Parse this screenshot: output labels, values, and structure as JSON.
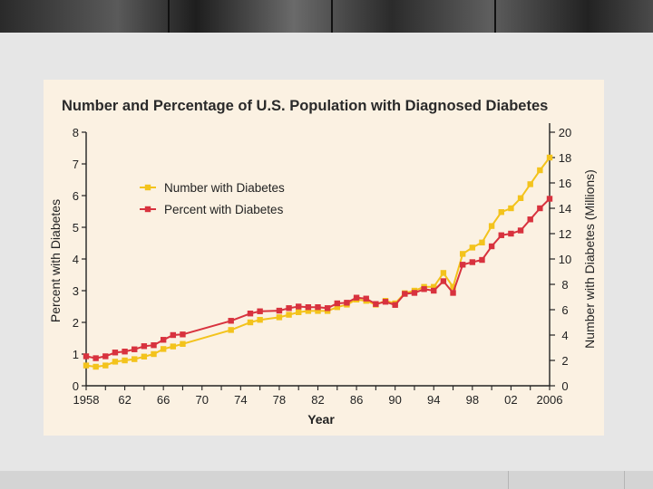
{
  "chart_data": {
    "type": "line",
    "title": "Number and Percentage of U.S. Population with Diagnosed Diabetes",
    "xlabel": "Year",
    "ylabel_left": "Percent with Diabetes",
    "ylabel_right": "Number with Diabetes (Millions)",
    "xlim": [
      1958,
      2006
    ],
    "ylim_left": [
      0,
      8
    ],
    "ylim_right": [
      0,
      20
    ],
    "x_tick_labels": [
      "1958",
      "62",
      "66",
      "70",
      "74",
      "78",
      "82",
      "86",
      "90",
      "94",
      "98",
      "02",
      "2006"
    ],
    "y_left_ticks": [
      "0",
      "1",
      "2",
      "3",
      "4",
      "5",
      "6",
      "7",
      "8"
    ],
    "y_right_ticks": [
      "0",
      "2",
      "4",
      "6",
      "8",
      "10",
      "12",
      "14",
      "16",
      "18",
      "20"
    ],
    "legend_position": "top-left",
    "series": [
      {
        "name": "Number with Diabetes",
        "axis": "right",
        "color": "#f3c31c",
        "x": [
          1958,
          1959,
          1960,
          1961,
          1962,
          1963,
          1964,
          1965,
          1966,
          1967,
          1968,
          1973,
          1975,
          1976,
          1978,
          1979,
          1980,
          1981,
          1982,
          1983,
          1984,
          1985,
          1986,
          1987,
          1988,
          1989,
          1990,
          1991,
          1992,
          1993,
          1994,
          1995,
          1996,
          1997,
          1998,
          1999,
          2000,
          2001,
          2002,
          2003,
          2004,
          2005,
          2006
        ],
        "values": [
          1.6,
          1.5,
          1.6,
          1.9,
          2.0,
          2.1,
          2.3,
          2.5,
          2.9,
          3.1,
          3.3,
          4.4,
          5.0,
          5.2,
          5.4,
          5.6,
          5.8,
          5.9,
          5.9,
          5.9,
          6.2,
          6.4,
          6.8,
          6.7,
          6.4,
          6.7,
          6.5,
          7.3,
          7.5,
          7.8,
          7.8,
          8.9,
          7.8,
          10.4,
          10.9,
          11.3,
          12.6,
          13.7,
          14.0,
          14.8,
          15.9,
          17.0,
          18.0
        ]
      },
      {
        "name": "Percent with Diabetes",
        "axis": "left",
        "color": "#d8323e",
        "x": [
          1958,
          1959,
          1960,
          1961,
          1962,
          1963,
          1964,
          1965,
          1966,
          1967,
          1968,
          1973,
          1975,
          1976,
          1978,
          1979,
          1980,
          1981,
          1982,
          1983,
          1984,
          1985,
          1986,
          1987,
          1988,
          1989,
          1990,
          1991,
          1992,
          1993,
          1994,
          1995,
          1996,
          1997,
          1998,
          1999,
          2000,
          2001,
          2002,
          2003,
          2004,
          2005,
          2006
        ],
        "values": [
          0.93,
          0.87,
          0.93,
          1.05,
          1.08,
          1.15,
          1.25,
          1.28,
          1.45,
          1.6,
          1.62,
          2.05,
          2.28,
          2.35,
          2.37,
          2.45,
          2.5,
          2.48,
          2.48,
          2.45,
          2.6,
          2.62,
          2.78,
          2.75,
          2.58,
          2.65,
          2.55,
          2.9,
          2.93,
          3.05,
          3.0,
          3.3,
          2.93,
          3.82,
          3.9,
          3.97,
          4.4,
          4.75,
          4.8,
          4.9,
          5.25,
          5.6,
          5.9
        ]
      }
    ]
  }
}
